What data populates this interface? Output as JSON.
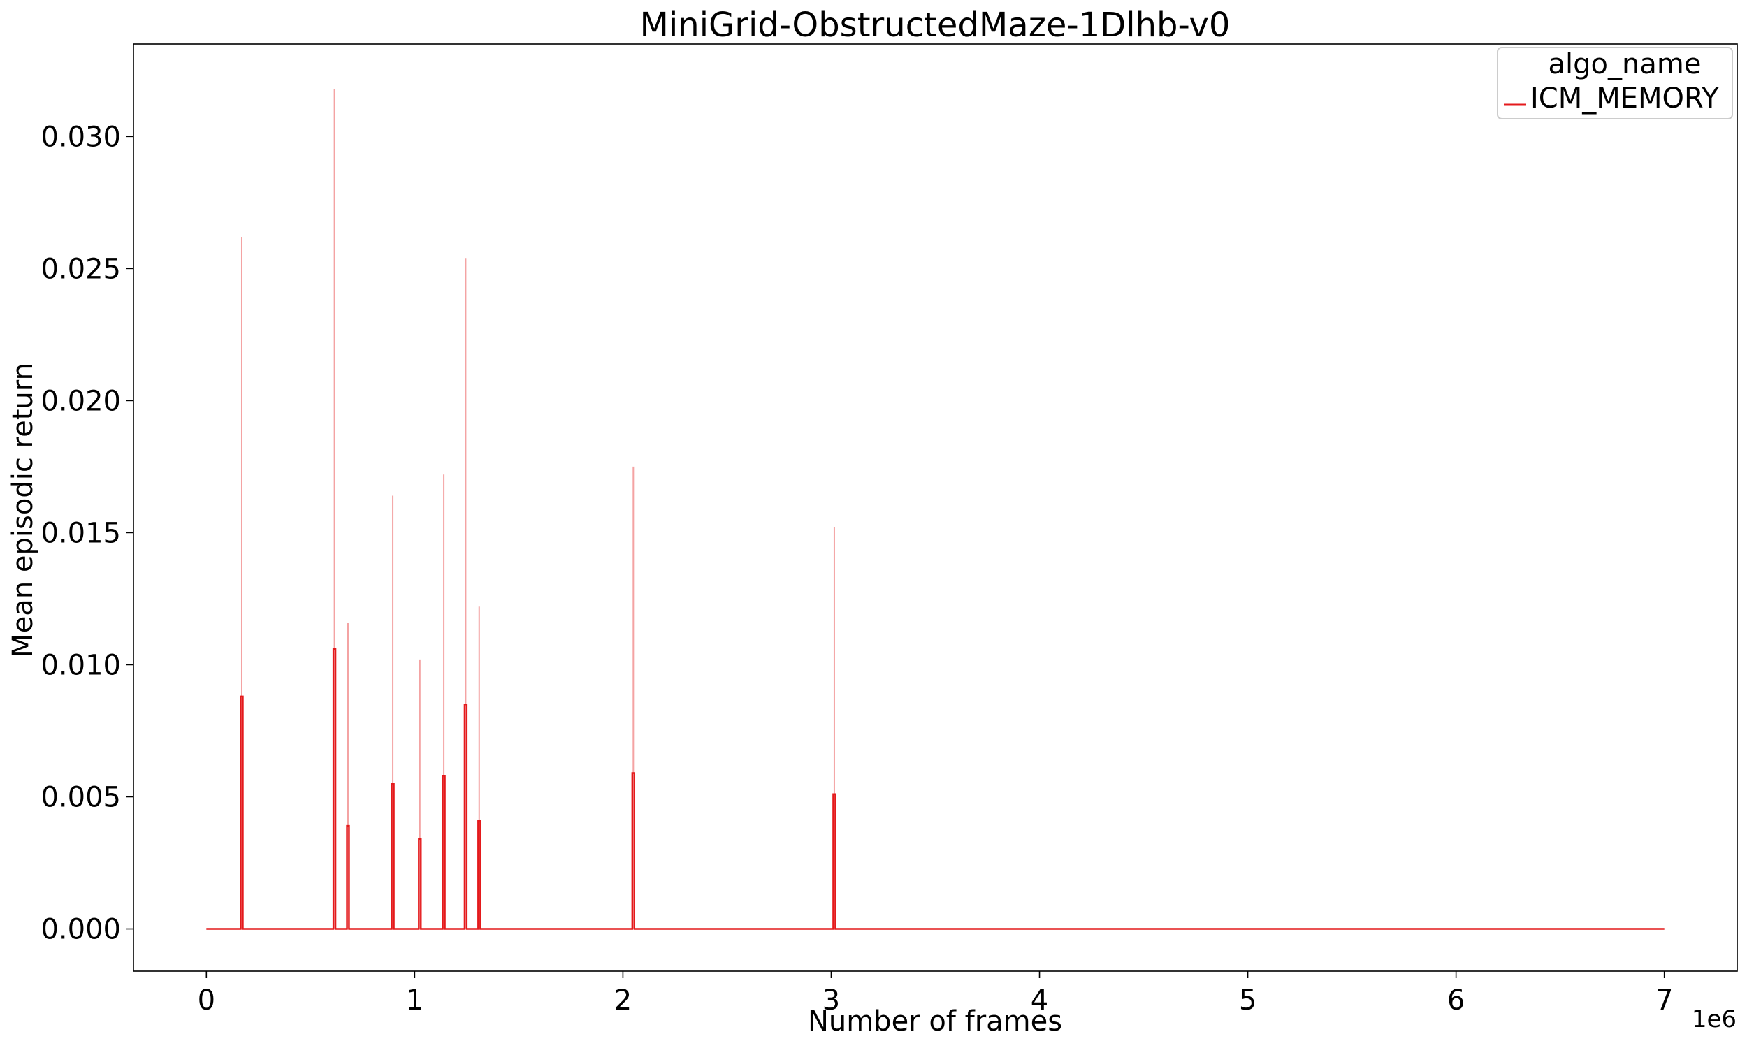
{
  "chart_data": {
    "type": "line",
    "title": "MiniGrid-ObstructedMaze-1Dlhb-v0",
    "xlabel": "Number of frames",
    "ylabel": "Mean episodic return",
    "x_offset_label": "1e6",
    "xlim": [
      -350000,
      7350000
    ],
    "ylim": [
      -0.0016,
      0.0335
    ],
    "x_ticks": [
      0,
      1000000,
      2000000,
      3000000,
      4000000,
      5000000,
      6000000,
      7000000
    ],
    "x_tick_labels": [
      "0",
      "1",
      "2",
      "3",
      "4",
      "5",
      "6",
      "7"
    ],
    "y_ticks": [
      0.0,
      0.005,
      0.01,
      0.015,
      0.02,
      0.025,
      0.03
    ],
    "y_tick_labels": [
      "0.000",
      "0.005",
      "0.010",
      "0.015",
      "0.020",
      "0.025",
      "0.030"
    ],
    "grid": false,
    "legend": {
      "title": "algo_name",
      "placement": "top-right"
    },
    "series": [
      {
        "name": "ICM_MEMORY",
        "color": "#e41a1c",
        "band_color": "#f4a3a3",
        "x_range": [
          0,
          7000000
        ],
        "baseline": 0.0,
        "spikes": [
          {
            "x": 170000,
            "mean": 0.0088,
            "upper": 0.0262
          },
          {
            "x": 615000,
            "mean": 0.0106,
            "upper": 0.0318
          },
          {
            "x": 680000,
            "mean": 0.0039,
            "upper": 0.0116
          },
          {
            "x": 895000,
            "mean": 0.0055,
            "upper": 0.0164
          },
          {
            "x": 1025000,
            "mean": 0.0034,
            "upper": 0.0102
          },
          {
            "x": 1140000,
            "mean": 0.0058,
            "upper": 0.0172
          },
          {
            "x": 1245000,
            "mean": 0.0085,
            "upper": 0.0254
          },
          {
            "x": 1310000,
            "mean": 0.0041,
            "upper": 0.0122
          },
          {
            "x": 2050000,
            "mean": 0.0059,
            "upper": 0.0175
          },
          {
            "x": 3015000,
            "mean": 0.0051,
            "upper": 0.0152
          }
        ]
      }
    ]
  }
}
